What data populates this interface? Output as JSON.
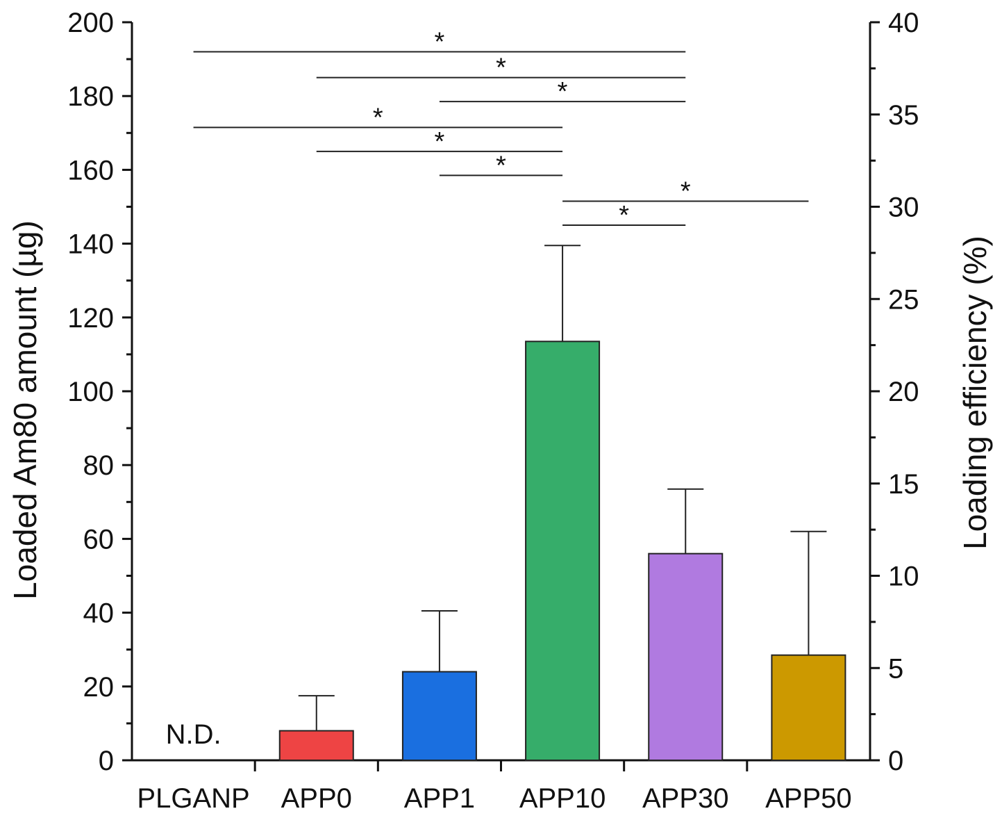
{
  "chart_data": {
    "type": "bar",
    "categories": [
      "PLGANP",
      "APP0",
      "APP1",
      "APP10",
      "APP30",
      "APP50"
    ],
    "values": [
      null,
      8,
      24,
      113.5,
      56,
      28.5
    ],
    "errors": [
      null,
      9.5,
      16.5,
      26,
      17.5,
      33.5
    ],
    "colors": [
      "#ffffff",
      "#ee4444",
      "#1a6fe0",
      "#36ad6a",
      "#b07ae0",
      "#cc9900"
    ],
    "ylabel": "Loaded Am80 amount (µg)",
    "ylabel_right": "Loading efficiency (%)",
    "ylim": [
      0,
      200
    ],
    "ylim_right": [
      0,
      40
    ],
    "yticks": [
      "0",
      "20",
      "40",
      "60",
      "80",
      "100",
      "120",
      "140",
      "160",
      "180",
      "200"
    ],
    "yticks_right": [
      "0",
      "5",
      "10",
      "15",
      "20",
      "25",
      "30",
      "35",
      "40"
    ],
    "annotations": [
      {
        "text": "N.D.",
        "category": "PLGANP"
      }
    ],
    "significance": [
      {
        "from": "PLGANP",
        "to": "APP30",
        "level": 192,
        "text": "*"
      },
      {
        "from": "APP0",
        "to": "APP30",
        "level": 185,
        "text": "*"
      },
      {
        "from": "APP1",
        "to": "APP30",
        "level": 178.5,
        "text": "*"
      },
      {
        "from": "PLGANP",
        "to": "APP10",
        "level": 171.5,
        "text": "*"
      },
      {
        "from": "APP0",
        "to": "APP10",
        "level": 165,
        "text": "*"
      },
      {
        "from": "APP1",
        "to": "APP10",
        "level": 158.5,
        "text": "*"
      },
      {
        "from": "APP10",
        "to": "APP50",
        "level": 151.5,
        "text": "*"
      },
      {
        "from": "APP10",
        "to": "APP30",
        "level": 145,
        "text": "*"
      }
    ]
  }
}
